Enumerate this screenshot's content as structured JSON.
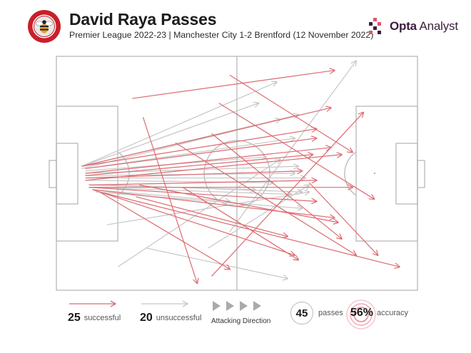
{
  "header": {
    "title": "David Raya Passes",
    "subtitle": "Premier League 2022-23 | Manchester City 1-2 Brentford (12 November 2022)"
  },
  "brand": {
    "name_bold": "Opta",
    "name_light": " Analyst"
  },
  "colors": {
    "successful": "#dc6b72",
    "unsuccessful": "#c6c6c6",
    "pitch_lines": "#b8b8b8",
    "accent": "#e0566a",
    "brand": "#3a1f3d"
  },
  "legend": {
    "successful_count": "25",
    "successful_label": "successful",
    "unsuccessful_count": "20",
    "unsuccessful_label": "unsuccessful",
    "direction_label": "Attacking Direction",
    "passes_count": "45",
    "passes_label": "passes",
    "accuracy_value": "56%",
    "accuracy_label": "accuracy"
  },
  "chart_data": {
    "type": "scatter",
    "description_units": "pitch coordinates, x 0-100 (own goal to opposition goal), y 0-100 (top touchline to bottom touchline)",
    "series": [
      {
        "name": "successful",
        "passes": [
          {
            "x1": 21,
            "y1": 18,
            "x2": 77,
            "y2": 6
          },
          {
            "x1": 7,
            "y1": 47,
            "x2": 76,
            "y2": 22
          },
          {
            "x1": 7,
            "y1": 47,
            "x2": 72,
            "y2": 31
          },
          {
            "x1": 8,
            "y1": 48,
            "x2": 72,
            "y2": 35
          },
          {
            "x1": 8,
            "y1": 50,
            "x2": 76,
            "y2": 39
          },
          {
            "x1": 8,
            "y1": 51,
            "x2": 71,
            "y2": 42
          },
          {
            "x1": 8,
            "y1": 53,
            "x2": 79,
            "y2": 42
          },
          {
            "x1": 8,
            "y1": 52,
            "x2": 68,
            "y2": 49
          },
          {
            "x1": 9,
            "y1": 55,
            "x2": 72,
            "y2": 53
          },
          {
            "x1": 9,
            "y1": 56,
            "x2": 82,
            "y2": 56
          },
          {
            "x1": 9,
            "y1": 56,
            "x2": 72,
            "y2": 62
          },
          {
            "x1": 10,
            "y1": 57,
            "x2": 77,
            "y2": 69
          },
          {
            "x1": 10,
            "y1": 57,
            "x2": 66,
            "y2": 85
          },
          {
            "x1": 12,
            "y1": 58,
            "x2": 95,
            "y2": 90
          },
          {
            "x1": 12,
            "y1": 58,
            "x2": 48,
            "y2": 91
          },
          {
            "x1": 23,
            "y1": 55,
            "x2": 78,
            "y2": 71
          },
          {
            "x1": 24,
            "y1": 26,
            "x2": 39,
            "y2": 97
          },
          {
            "x1": 33,
            "y1": 37,
            "x2": 83,
            "y2": 85
          },
          {
            "x1": 45,
            "y1": 20,
            "x2": 88,
            "y2": 61
          },
          {
            "x1": 48,
            "y1": 8,
            "x2": 82,
            "y2": 41
          },
          {
            "x1": 43,
            "y1": 33,
            "x2": 79,
            "y2": 78
          },
          {
            "x1": 35,
            "y1": 56,
            "x2": 67,
            "y2": 87
          },
          {
            "x1": 22,
            "y1": 60,
            "x2": 64,
            "y2": 77
          },
          {
            "x1": 70,
            "y1": 54,
            "x2": 89,
            "y2": 85
          },
          {
            "x1": 43,
            "y1": 94,
            "x2": 85,
            "y2": 24
          }
        ]
      },
      {
        "name": "unsuccessful",
        "passes": [
          {
            "x1": 7,
            "y1": 47,
            "x2": 61,
            "y2": 11
          },
          {
            "x1": 7,
            "y1": 47,
            "x2": 56,
            "y2": 20
          },
          {
            "x1": 7,
            "y1": 47,
            "x2": 67,
            "y2": 25
          },
          {
            "x1": 7,
            "y1": 48,
            "x2": 62,
            "y2": 27
          },
          {
            "x1": 8,
            "y1": 48,
            "x2": 66,
            "y2": 35
          },
          {
            "x1": 8,
            "y1": 49,
            "x2": 58,
            "y2": 43
          },
          {
            "x1": 8,
            "y1": 50,
            "x2": 67,
            "y2": 47
          },
          {
            "x1": 8,
            "y1": 51,
            "x2": 66,
            "y2": 50
          },
          {
            "x1": 8,
            "y1": 52,
            "x2": 69,
            "y2": 52
          },
          {
            "x1": 8,
            "y1": 53,
            "x2": 60,
            "y2": 54
          },
          {
            "x1": 9,
            "y1": 55,
            "x2": 55,
            "y2": 57
          },
          {
            "x1": 9,
            "y1": 56,
            "x2": 65,
            "y2": 59
          },
          {
            "x1": 10,
            "y1": 57,
            "x2": 48,
            "y2": 62
          },
          {
            "x1": 11,
            "y1": 58,
            "x2": 68,
            "y2": 65
          },
          {
            "x1": 14,
            "y1": 72,
            "x2": 70,
            "y2": 58
          },
          {
            "x1": 15,
            "y1": 55,
            "x2": 68,
            "y2": 58
          },
          {
            "x1": 17,
            "y1": 90,
            "x2": 62,
            "y2": 44
          },
          {
            "x1": 25,
            "y1": 82,
            "x2": 64,
            "y2": 95
          },
          {
            "x1": 48,
            "y1": 75,
            "x2": 83,
            "y2": 2
          },
          {
            "x1": 42,
            "y1": 82,
            "x2": 70,
            "y2": 55
          }
        ]
      }
    ],
    "pitch": {
      "orientation": "horizontal",
      "attacking_direction": "left-to-right"
    }
  }
}
